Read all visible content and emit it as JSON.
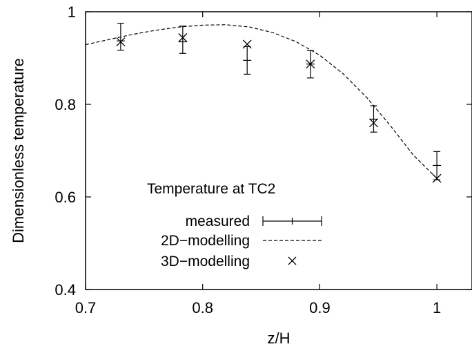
{
  "chart_data": {
    "type": "line",
    "title": "",
    "xlabel": "z/H",
    "ylabel": "Dimensionless temperature",
    "xlim": [
      0.7,
      1.03
    ],
    "ylim": [
      0.4,
      1.0
    ],
    "x_ticks": [
      0.7,
      0.8,
      0.9,
      1.0
    ],
    "x_tick_labels": [
      "0.7",
      "0.8",
      "0.9",
      "1"
    ],
    "y_ticks": [
      0.4,
      0.6,
      0.8,
      1.0
    ],
    "y_tick_labels": [
      "0.4",
      "0.6",
      "0.8",
      "1"
    ],
    "grid": false,
    "legend_title": "Temperature at TC2",
    "legend_position": "bottom-left",
    "series": [
      {
        "name": "measured",
        "style": "errorbar",
        "points": [
          {
            "x": 0.73,
            "y": 0.937,
            "ylow": 0.917,
            "yhigh": 0.975
          },
          {
            "x": 0.783,
            "y": 0.935,
            "ylow": 0.91,
            "yhigh": 0.969
          },
          {
            "x": 0.838,
            "y": 0.895,
            "ylow": 0.865,
            "yhigh": 0.925
          },
          {
            "x": 0.892,
            "y": 0.887,
            "ylow": 0.857,
            "yhigh": 0.916
          },
          {
            "x": 0.946,
            "y": 0.768,
            "ylow": 0.74,
            "yhigh": 0.797
          },
          {
            "x": 1.0,
            "y": 0.668,
            "ylow": 0.637,
            "yhigh": 0.698
          }
        ]
      },
      {
        "name": "2D−modelling",
        "style": "dashed-line",
        "x": [
          0.7,
          0.72,
          0.74,
          0.76,
          0.78,
          0.8,
          0.82,
          0.84,
          0.86,
          0.88,
          0.9,
          0.92,
          0.94,
          0.96,
          0.98,
          1.0
        ],
        "y": [
          0.929,
          0.94,
          0.951,
          0.96,
          0.967,
          0.971,
          0.972,
          0.967,
          0.955,
          0.935,
          0.906,
          0.866,
          0.815,
          0.755,
          0.69,
          0.64
        ]
      },
      {
        "name": "3D−modelling",
        "style": "x-marker",
        "x": [
          0.73,
          0.783,
          0.838,
          0.892,
          0.946,
          1.0
        ],
        "y": [
          0.935,
          0.944,
          0.93,
          0.887,
          0.76,
          0.64
        ]
      }
    ]
  }
}
